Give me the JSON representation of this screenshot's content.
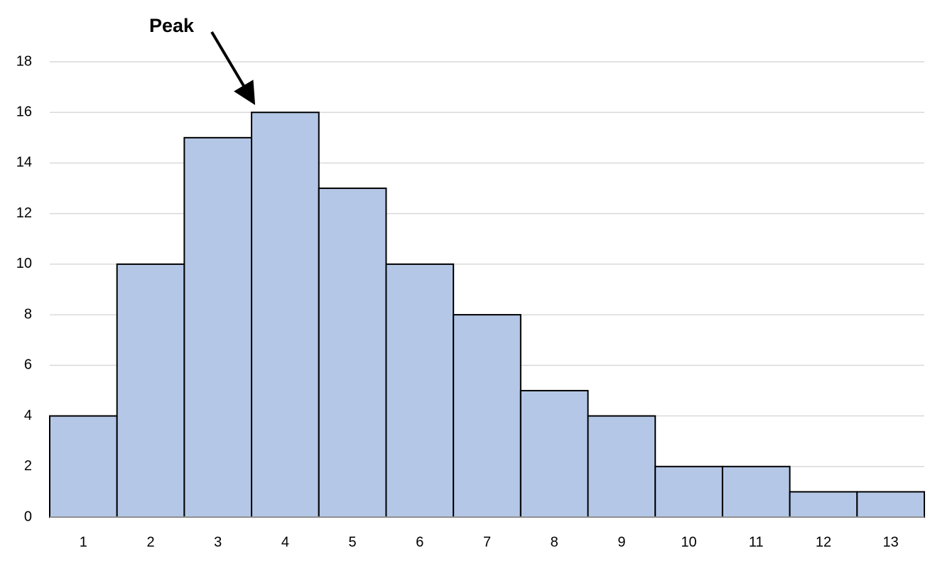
{
  "chart_data": {
    "type": "bar",
    "annotation": "Peak",
    "categories": [
      "1",
      "2",
      "3",
      "4",
      "5",
      "6",
      "7",
      "8",
      "9",
      "10",
      "11",
      "12",
      "13"
    ],
    "values": [
      4,
      10,
      15,
      16,
      13,
      10,
      8,
      5,
      4,
      2,
      2,
      1,
      1
    ],
    "color": "#b4c7e7",
    "ylim": [
      0,
      18
    ],
    "yticks": [
      0,
      2,
      4,
      6,
      8,
      10,
      12,
      14,
      16,
      18
    ],
    "grid": true
  }
}
